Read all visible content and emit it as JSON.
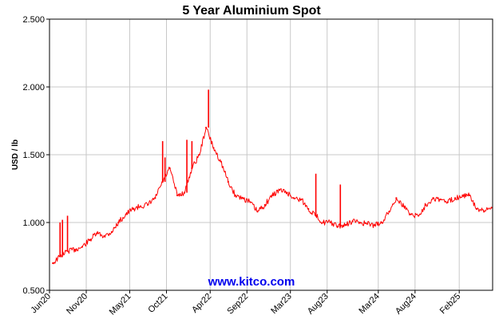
{
  "chart_data": {
    "type": "line",
    "title": "5 Year Aluminium Spot",
    "xlabel": "",
    "ylabel": "USD / lb",
    "ylim": [
      0.5,
      2.5
    ],
    "yticks": [
      "0.500",
      "1.000",
      "1.500",
      "2.000",
      "2.500"
    ],
    "x_tick_labels": [
      "Jun20",
      "Nov20",
      "May21",
      "Oct21",
      "Apr22",
      "Sep22",
      "Mar23",
      "Aug23",
      "Mar24",
      "Aug24",
      "Feb25"
    ],
    "grid": true,
    "legend": "none",
    "watermark": "www.kitco.com",
    "series": [
      {
        "color": "#ff0000",
        "x": [
          "2020-06",
          "2020-07",
          "2020-08",
          "2020-09",
          "2020-10",
          "2020-11",
          "2020-12",
          "2021-01",
          "2021-02",
          "2021-03",
          "2021-04",
          "2021-05",
          "2021-06",
          "2021-07",
          "2021-08",
          "2021-09",
          "2021-10",
          "2021-11",
          "2021-12",
          "2022-01",
          "2022-02",
          "2022-03",
          "2022-04",
          "2022-05",
          "2022-06",
          "2022-07",
          "2022-08",
          "2022-09",
          "2022-10",
          "2022-11",
          "2022-12",
          "2023-01",
          "2023-02",
          "2023-03",
          "2023-04",
          "2023-05",
          "2023-06",
          "2023-07",
          "2023-08",
          "2023-09",
          "2023-10",
          "2023-11",
          "2023-12",
          "2024-01",
          "2024-02",
          "2024-03",
          "2024-04",
          "2024-05",
          "2024-06",
          "2024-07",
          "2024-08",
          "2024-09",
          "2024-10",
          "2024-11",
          "2024-12",
          "2025-01",
          "2025-02",
          "2025-03",
          "2025-04",
          "2025-05",
          "2025-06"
        ],
        "values": [
          0.7,
          0.75,
          0.79,
          0.8,
          0.82,
          0.87,
          0.92,
          0.9,
          0.93,
          1.0,
          1.06,
          1.1,
          1.12,
          1.13,
          1.18,
          1.3,
          1.4,
          1.2,
          1.22,
          1.4,
          1.5,
          1.7,
          1.55,
          1.45,
          1.3,
          1.2,
          1.18,
          1.15,
          1.08,
          1.13,
          1.2,
          1.24,
          1.22,
          1.18,
          1.17,
          1.1,
          1.05,
          1.0,
          1.0,
          0.97,
          0.98,
          1.01,
          1.0,
          0.99,
          0.98,
          1.0,
          1.08,
          1.18,
          1.12,
          1.06,
          1.05,
          1.13,
          1.18,
          1.17,
          1.15,
          1.18,
          1.2,
          1.2,
          1.1,
          1.08,
          1.11
        ],
        "spikes": [
          {
            "x": "2020-07",
            "value": 1.0
          },
          {
            "x": "2020-07",
            "value": 1.02
          },
          {
            "x": "2020-08",
            "value": 1.05
          },
          {
            "x": "2021-09",
            "value": 1.48
          },
          {
            "x": "2021-09",
            "value": 1.6
          },
          {
            "x": "2021-12",
            "value": 1.61
          },
          {
            "x": "2022-01",
            "value": 1.6
          },
          {
            "x": "2022-03",
            "value": 1.98
          },
          {
            "x": "2023-06",
            "value": 1.36
          },
          {
            "x": "2023-09",
            "value": 1.28
          }
        ]
      }
    ]
  }
}
